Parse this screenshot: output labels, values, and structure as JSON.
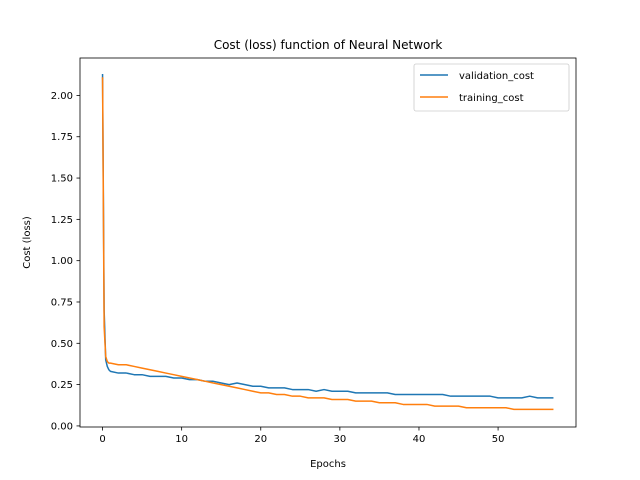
{
  "chart_data": {
    "type": "line",
    "title": "Cost (loss) function of Neural Network",
    "xlabel": "Epochs",
    "ylabel": "Cost (loss)",
    "xlim": [
      -2.85,
      59.85
    ],
    "ylim": [
      -0.0065,
      2.2265
    ],
    "xticks": [
      0,
      10,
      20,
      30,
      40,
      50
    ],
    "yticks": [
      0.0,
      0.25,
      0.5,
      0.75,
      1.0,
      1.25,
      1.5,
      1.75,
      2.0
    ],
    "ytick_labels": [
      "0.00",
      "0.25",
      "0.50",
      "0.75",
      "1.00",
      "1.25",
      "1.50",
      "1.75",
      "2.00"
    ],
    "grid": false,
    "legend_position": "upper right",
    "series": [
      {
        "name": "validation_cost",
        "color": "#1f77b4",
        "x": [
          0,
          0.2,
          0.4,
          0.6,
          0.8,
          1,
          2,
          3,
          4,
          5,
          6,
          7,
          8,
          9,
          10,
          11,
          12,
          13,
          14,
          15,
          16,
          17,
          18,
          19,
          20,
          21,
          22,
          23,
          24,
          25,
          26,
          27,
          28,
          29,
          30,
          31,
          32,
          33,
          34,
          35,
          36,
          37,
          38,
          39,
          40,
          41,
          42,
          43,
          44,
          45,
          46,
          47,
          48,
          49,
          50,
          51,
          52,
          53,
          54,
          55,
          56,
          57
        ],
        "y": [
          2.13,
          0.7,
          0.4,
          0.36,
          0.34,
          0.33,
          0.32,
          0.32,
          0.31,
          0.31,
          0.3,
          0.3,
          0.3,
          0.29,
          0.29,
          0.28,
          0.28,
          0.27,
          0.27,
          0.26,
          0.25,
          0.26,
          0.25,
          0.24,
          0.24,
          0.23,
          0.23,
          0.23,
          0.22,
          0.22,
          0.22,
          0.21,
          0.22,
          0.21,
          0.21,
          0.21,
          0.2,
          0.2,
          0.2,
          0.2,
          0.2,
          0.19,
          0.19,
          0.19,
          0.19,
          0.19,
          0.19,
          0.19,
          0.18,
          0.18,
          0.18,
          0.18,
          0.18,
          0.18,
          0.17,
          0.17,
          0.17,
          0.17,
          0.18,
          0.17,
          0.17,
          0.17
        ]
      },
      {
        "name": "training_cost",
        "color": "#ff7f0e",
        "x": [
          0,
          0.2,
          0.4,
          0.6,
          0.8,
          1,
          2,
          3,
          4,
          5,
          6,
          7,
          8,
          9,
          10,
          11,
          12,
          13,
          14,
          15,
          16,
          17,
          18,
          19,
          20,
          21,
          22,
          23,
          24,
          25,
          26,
          27,
          28,
          29,
          30,
          31,
          32,
          33,
          34,
          35,
          36,
          37,
          38,
          39,
          40,
          41,
          42,
          43,
          44,
          45,
          46,
          47,
          48,
          49,
          50,
          51,
          52,
          53,
          54,
          55,
          56,
          57
        ],
        "y": [
          2.11,
          0.6,
          0.42,
          0.39,
          0.38,
          0.38,
          0.37,
          0.37,
          0.36,
          0.35,
          0.34,
          0.33,
          0.32,
          0.31,
          0.3,
          0.29,
          0.28,
          0.27,
          0.26,
          0.25,
          0.24,
          0.23,
          0.22,
          0.21,
          0.2,
          0.2,
          0.19,
          0.19,
          0.18,
          0.18,
          0.17,
          0.17,
          0.17,
          0.16,
          0.16,
          0.16,
          0.15,
          0.15,
          0.15,
          0.14,
          0.14,
          0.14,
          0.13,
          0.13,
          0.13,
          0.13,
          0.12,
          0.12,
          0.12,
          0.12,
          0.11,
          0.11,
          0.11,
          0.11,
          0.11,
          0.11,
          0.1,
          0.1,
          0.1,
          0.1,
          0.1,
          0.1
        ]
      }
    ]
  }
}
